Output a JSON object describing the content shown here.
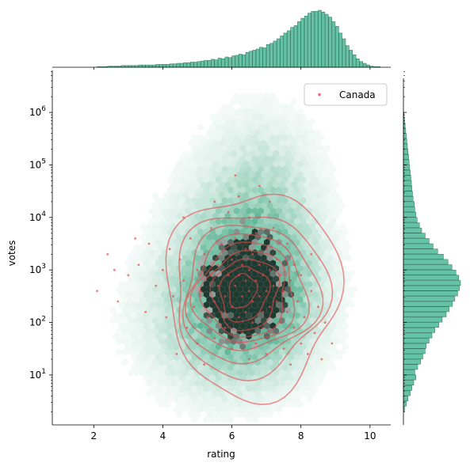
{
  "chart_data": {
    "type": "scatter",
    "subtype": "jointplot-hexbin-kde-log-y",
    "title": "",
    "xlabel": "rating",
    "ylabel": "votes",
    "x_ticks": [
      "2",
      "4",
      "6",
      "8",
      "10"
    ],
    "y_ticks": [
      "10^1",
      "10^2",
      "10^3",
      "10^4",
      "10^5",
      "10^6"
    ],
    "xlim": [
      0.8,
      10.6
    ],
    "ylim_log10": [
      0.05,
      6.8
    ],
    "y_scale": "log",
    "legend": {
      "position": "top-right",
      "entries": [
        {
          "label": "Canada",
          "color": "#e8474a"
        }
      ]
    },
    "colors": {
      "hex_base": "#3aa57f",
      "hex_dark": "#1f3a30",
      "kde": "#e8474a",
      "hist_fill": "#66c2a5",
      "hist_edge": "#2f6f59"
    },
    "series": [
      {
        "name": "Canada",
        "kind": "scatter",
        "points": [
          [
            2.1,
            2.6
          ],
          [
            2.4,
            3.3
          ],
          [
            2.7,
            2.4
          ],
          [
            3.0,
            2.9
          ],
          [
            3.3,
            3.1
          ],
          [
            3.5,
            2.2
          ],
          [
            3.6,
            3.5
          ],
          [
            3.8,
            2.7
          ],
          [
            4.0,
            3.0
          ],
          [
            4.1,
            2.1
          ],
          [
            4.2,
            3.4
          ],
          [
            4.3,
            2.5
          ],
          [
            4.4,
            1.4
          ],
          [
            4.5,
            3.2
          ],
          [
            4.6,
            2.8
          ],
          [
            4.7,
            1.9
          ],
          [
            4.8,
            3.6
          ],
          [
            4.9,
            2.3
          ],
          [
            5.0,
            3.0
          ],
          [
            5.0,
            1.6
          ],
          [
            5.1,
            2.6
          ],
          [
            5.2,
            3.3
          ],
          [
            5.2,
            1.2
          ],
          [
            5.3,
            2.1
          ],
          [
            5.4,
            2.9
          ],
          [
            5.4,
            3.8
          ],
          [
            5.5,
            2.4
          ],
          [
            5.5,
            1.7
          ],
          [
            5.6,
            3.1
          ],
          [
            5.6,
            2.7
          ],
          [
            5.7,
            2.2
          ],
          [
            5.7,
            3.5
          ],
          [
            5.8,
            2.5
          ],
          [
            5.8,
            1.9
          ],
          [
            5.9,
            2.9
          ],
          [
            5.9,
            4.1
          ],
          [
            6.0,
            2.3
          ],
          [
            6.0,
            3.2
          ],
          [
            6.0,
            1.5
          ],
          [
            6.1,
            2.7
          ],
          [
            6.1,
            3.6
          ],
          [
            6.2,
            2.1
          ],
          [
            6.2,
            2.9
          ],
          [
            6.2,
            4.4
          ],
          [
            6.3,
            2.5
          ],
          [
            6.3,
            3.1
          ],
          [
            6.3,
            1.8
          ],
          [
            6.4,
            2.8
          ],
          [
            6.4,
            3.4
          ],
          [
            6.4,
            2.2
          ],
          [
            6.5,
            2.6
          ],
          [
            6.5,
            3.0
          ],
          [
            6.5,
            1.3
          ],
          [
            6.5,
            4.0
          ],
          [
            6.6,
            2.4
          ],
          [
            6.6,
            3.3
          ],
          [
            6.6,
            2.0
          ],
          [
            6.7,
            2.8
          ],
          [
            6.7,
            3.7
          ],
          [
            6.7,
            1.6
          ],
          [
            6.8,
            2.5
          ],
          [
            6.8,
            3.1
          ],
          [
            6.8,
            4.6
          ],
          [
            6.9,
            2.2
          ],
          [
            6.9,
            2.9
          ],
          [
            6.9,
            1.9
          ],
          [
            7.0,
            2.6
          ],
          [
            7.0,
            3.4
          ],
          [
            7.0,
            1.4
          ],
          [
            7.1,
            2.3
          ],
          [
            7.1,
            3.0
          ],
          [
            7.2,
            2.7
          ],
          [
            7.2,
            1.8
          ],
          [
            7.2,
            3.8
          ],
          [
            7.3,
            2.4
          ],
          [
            7.3,
            3.2
          ],
          [
            7.4,
            2.0
          ],
          [
            7.4,
            2.9
          ],
          [
            7.5,
            1.5
          ],
          [
            7.5,
            2.6
          ],
          [
            7.6,
            3.5
          ],
          [
            7.6,
            2.2
          ],
          [
            7.7,
            1.2
          ],
          [
            7.7,
            2.8
          ],
          [
            7.8,
            1.9
          ],
          [
            7.8,
            3.1
          ],
          [
            7.9,
            2.4
          ],
          [
            8.0,
            1.6
          ],
          [
            8.0,
            2.9
          ],
          [
            8.1,
            2.1
          ],
          [
            8.2,
            1.4
          ],
          [
            8.3,
            2.6
          ],
          [
            8.4,
            1.8
          ],
          [
            8.5,
            2.3
          ],
          [
            8.6,
            1.3
          ],
          [
            8.7,
            2.0
          ],
          [
            8.9,
            1.6
          ],
          [
            5.5,
            4.3
          ],
          [
            6.1,
            4.8
          ],
          [
            7.1,
            4.3
          ],
          [
            4.6,
            4.0
          ],
          [
            3.2,
            3.6
          ],
          [
            2.6,
            3.0
          ],
          [
            8.3,
            3.3
          ]
        ]
      }
    ],
    "kde_levels": [
      {
        "cx": 6.6,
        "cy": 2.55,
        "rx": 2.5,
        "ry": 1.95,
        "tilt": 0.05
      },
      {
        "cx": 6.5,
        "cy": 2.55,
        "rx": 2.2,
        "ry": 1.55,
        "tilt": 0.05
      },
      {
        "cx": 6.5,
        "cy": 2.55,
        "rx": 1.95,
        "ry": 1.3,
        "tilt": 0.05
      },
      {
        "cx": 6.45,
        "cy": 2.55,
        "rx": 1.7,
        "ry": 1.1,
        "tilt": 0.05
      },
      {
        "cx": 6.4,
        "cy": 2.55,
        "rx": 1.45,
        "ry": 0.95,
        "tilt": 0.05
      },
      {
        "cx": 6.4,
        "cy": 2.55,
        "rx": 1.2,
        "ry": 0.82,
        "tilt": 0.05
      },
      {
        "cx": 6.4,
        "cy": 2.55,
        "rx": 0.95,
        "ry": 0.68,
        "tilt": 0.05
      },
      {
        "cx": 6.35,
        "cy": 2.55,
        "rx": 0.7,
        "ry": 0.52,
        "tilt": 0.05
      },
      {
        "cx": 6.3,
        "cy": 2.6,
        "rx": 0.4,
        "ry": 0.32,
        "tilt": 0.05
      }
    ],
    "marginal_x_hist": {
      "bin_start": 1.0,
      "bin_width": 0.1,
      "relative_counts": [
        0,
        0,
        0,
        0,
        0,
        0,
        0,
        0,
        0,
        0,
        0,
        0.01,
        0.01,
        0.01,
        0.02,
        0.02,
        0.02,
        0.02,
        0.03,
        0.03,
        0.03,
        0.03,
        0.03,
        0.04,
        0.04,
        0.04,
        0.04,
        0.04,
        0.05,
        0.05,
        0.05,
        0.05,
        0.06,
        0.06,
        0.07,
        0.07,
        0.08,
        0.08,
        0.09,
        0.09,
        0.1,
        0.11,
        0.12,
        0.12,
        0.14,
        0.13,
        0.16,
        0.15,
        0.18,
        0.17,
        0.2,
        0.21,
        0.23,
        0.22,
        0.26,
        0.28,
        0.3,
        0.32,
        0.35,
        0.34,
        0.4,
        0.42,
        0.46,
        0.5,
        0.55,
        0.6,
        0.64,
        0.7,
        0.73,
        0.8,
        0.86,
        0.9,
        0.95,
        0.98,
        0.98,
        1.0,
        0.97,
        0.93,
        0.88,
        0.8,
        0.72,
        0.6,
        0.5,
        0.38,
        0.3,
        0.22,
        0.15,
        0.1,
        0.07,
        0.04,
        0.02,
        0.01,
        0.01,
        0,
        0,
        0,
        0,
        0,
        0,
        0,
        0,
        0,
        0
      ]
    },
    "marginal_y_hist": {
      "bin_start_log10": 0.3,
      "bin_width_log10": 0.1,
      "relative_counts": [
        0.02,
        0.05,
        0.08,
        0.12,
        0.15,
        0.18,
        0.22,
        0.2,
        0.25,
        0.3,
        0.34,
        0.38,
        0.4,
        0.45,
        0.5,
        0.55,
        0.62,
        0.68,
        0.75,
        0.8,
        0.86,
        0.9,
        0.95,
        0.98,
        1.0,
        0.97,
        0.92,
        0.85,
        0.78,
        0.7,
        0.6,
        0.52,
        0.45,
        0.38,
        0.32,
        0.28,
        0.24,
        0.22,
        0.2,
        0.19,
        0.17,
        0.16,
        0.15,
        0.14,
        0.13,
        0.12,
        0.11,
        0.1,
        0.09,
        0.08,
        0.07,
        0.06,
        0.05,
        0.04,
        0.03,
        0.02,
        0.01,
        0,
        0,
        0
      ]
    },
    "hexbin_density": [
      {
        "cx": 6.5,
        "cy": 2.6,
        "sx": 1.0,
        "sy": 0.75,
        "w": 1.0
      },
      {
        "cx": 6.3,
        "cy": 3.2,
        "sx": 1.3,
        "sy": 1.2,
        "w": 0.5
      },
      {
        "cx": 5.8,
        "cy": 2.0,
        "sx": 1.6,
        "sy": 0.9,
        "w": 0.4
      },
      {
        "cx": 7.0,
        "cy": 4.5,
        "sx": 1.0,
        "sy": 1.0,
        "w": 0.25
      }
    ]
  }
}
